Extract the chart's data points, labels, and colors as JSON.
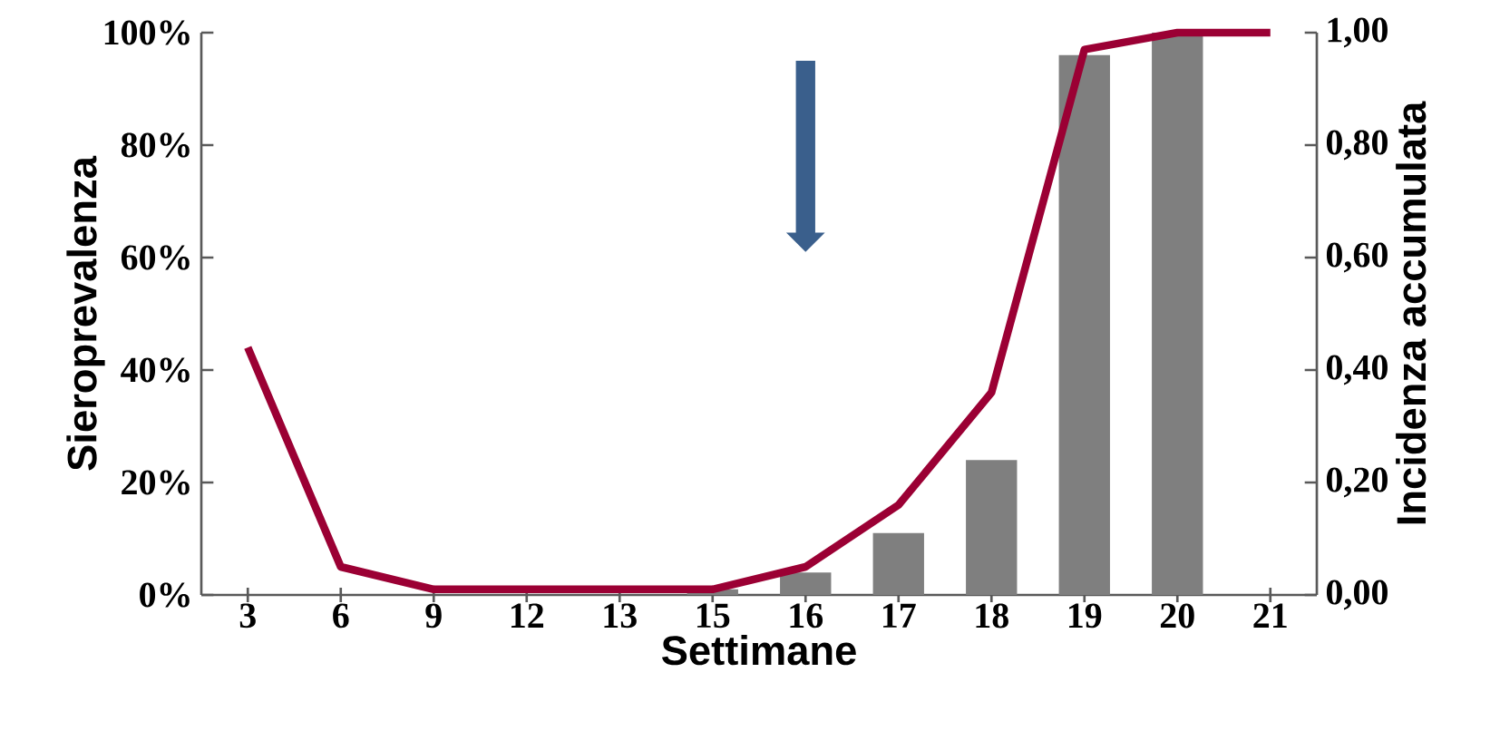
{
  "chart_data": {
    "type": "bar",
    "xlabel": "Settimane",
    "ylabel": "Sieroprevalenza",
    "y2label": "Incidenza accumulata",
    "categories": [
      "3",
      "6",
      "9",
      "12",
      "13",
      "15",
      "16",
      "17",
      "18",
      "19",
      "20",
      "21"
    ],
    "series": [
      {
        "color": "#7f7f7f",
        "values": [
          0,
          0,
          0,
          0,
          0,
          1,
          4,
          11,
          24,
          96,
          100,
          0
        ]
      },
      {
        "type": "line",
        "axis": "y2",
        "color": "#9b0034",
        "values": [
          0.44,
          0.05,
          0.01,
          0.01,
          0.01,
          0.01,
          0.05,
          0.16,
          0.36,
          0.97,
          1.0,
          1.0
        ]
      }
    ],
    "ylim": [
      0,
      100
    ],
    "yticks": [
      {
        "value": 0,
        "label": "0%"
      },
      {
        "value": 20,
        "label": "20%"
      },
      {
        "value": 40,
        "label": "40%"
      },
      {
        "value": 60,
        "label": "60%"
      },
      {
        "value": 80,
        "label": "80%"
      },
      {
        "value": 100,
        "label": "100%"
      }
    ],
    "y2lim": [
      0,
      1
    ],
    "y2ticks": [
      {
        "value": 0,
        "label": "0,00"
      },
      {
        "value": 0.2,
        "label": "0,20"
      },
      {
        "value": 0.4,
        "label": "0,40"
      },
      {
        "value": 0.6,
        "label": "0,60"
      },
      {
        "value": 0.8,
        "label": "0,80"
      },
      {
        "value": 1.0,
        "label": "1,00"
      }
    ]
  }
}
